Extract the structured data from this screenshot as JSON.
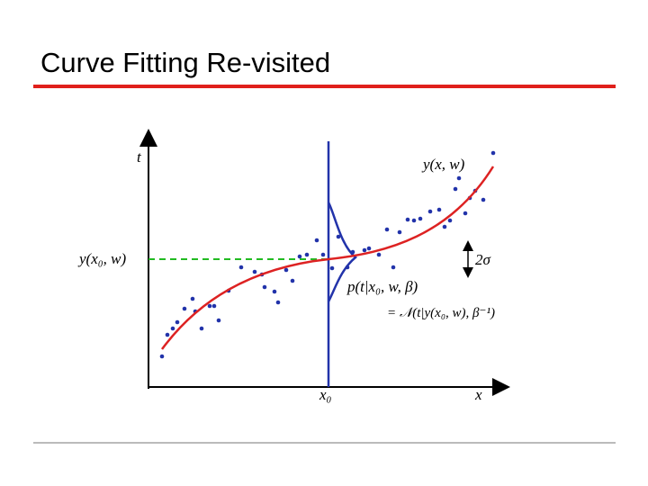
{
  "header": {
    "title": "Curve Fitting Re-visited"
  },
  "figure": {
    "y_axis_label": "t",
    "x_axis_label": "x",
    "curve_label": "y(x, w)",
    "level_label": "y(x₀, w)",
    "spread_label": "2σ",
    "density_label": "p(t|x₀, w, β)",
    "density_formula": "= 𝒩(t|y(x₀, w), β⁻¹)",
    "x0_label": "x₀"
  }
}
